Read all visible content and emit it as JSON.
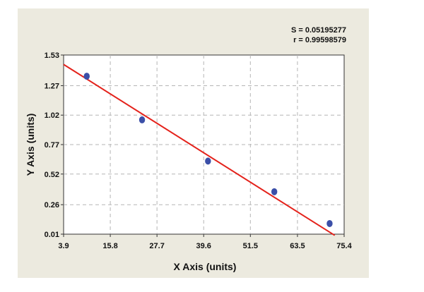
{
  "chart_data": {
    "type": "scatter",
    "title": "",
    "xlabel": "X Axis (units)",
    "ylabel": "Y Axis (units)",
    "xlim": [
      3.9,
      75.4
    ],
    "ylim": [
      0.01,
      1.53
    ],
    "x_ticks": [
      "3.9",
      "15.8",
      "27.7",
      "39.6",
      "51.5",
      "63.5",
      "75.4"
    ],
    "y_ticks": [
      "0.01",
      "0.26",
      "0.52",
      "0.77",
      "1.02",
      "1.27",
      "1.53"
    ],
    "grid": true,
    "annotations": [
      "S = 0.05195277",
      "r = 0.99598579"
    ],
    "series": [
      {
        "kind": "points",
        "x": [
          9.8,
          23.9,
          40.7,
          57.6,
          71.7
        ],
        "y": [
          1.35,
          0.98,
          0.63,
          0.37,
          0.1
        ],
        "color": "#3b4fa8"
      },
      {
        "kind": "fit-line",
        "x": [
          3.9,
          73.0
        ],
        "y": [
          1.45,
          0.0
        ],
        "color": "#e4221b"
      }
    ],
    "colors": {
      "background": "#eceadf",
      "plot_background": "#ffffff",
      "grid": "#b5b5b5",
      "marker": "#3b4fa8",
      "fit_line": "#e4221b"
    }
  }
}
